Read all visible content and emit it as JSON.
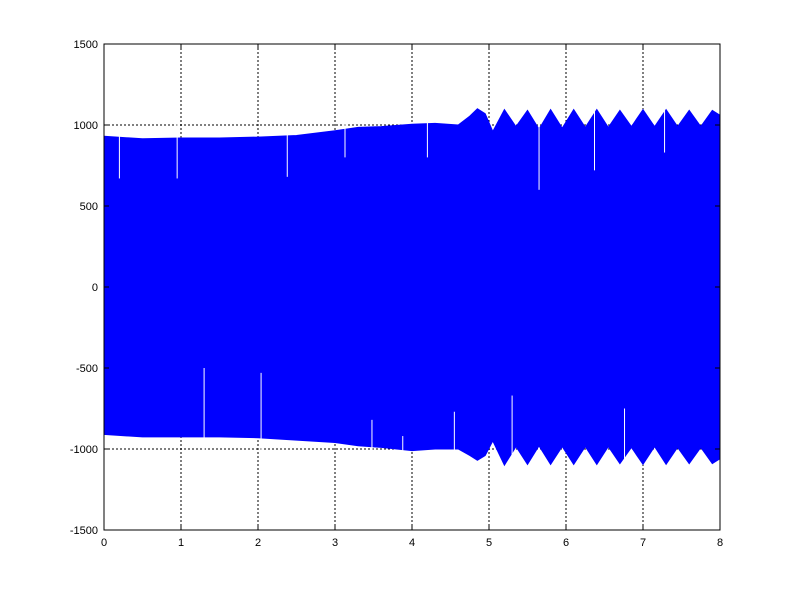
{
  "chart_data": {
    "type": "line",
    "title": "",
    "xlabel": "",
    "ylabel": "",
    "xlim": [
      0,
      8
    ],
    "ylim": [
      -1500,
      1500
    ],
    "x_ticks": [
      0,
      1,
      2,
      3,
      4,
      5,
      6,
      7,
      8
    ],
    "y_ticks": [
      -1500,
      -1000,
      -500,
      0,
      500,
      1000,
      1500
    ],
    "x_tick_labels": [
      "0",
      "1",
      "2",
      "3",
      "4",
      "5",
      "6",
      "7",
      "8"
    ],
    "y_tick_labels": [
      "-1500",
      "-1000",
      "-500",
      "0",
      "500",
      "1000",
      "1500"
    ],
    "grid": true,
    "grid_style": "dotted",
    "legend": "none",
    "series": [
      {
        "color": "#0000ff",
        "envelope": {
          "x": [
            0,
            0.5,
            1.0,
            1.5,
            2.0,
            2.5,
            3.0,
            3.3,
            3.6,
            4.0,
            4.3,
            4.6,
            4.75,
            4.85,
            4.95,
            5.05,
            5.2,
            5.35,
            5.5,
            5.65,
            5.8,
            5.95,
            6.1,
            6.25,
            6.4,
            6.55,
            6.7,
            6.85,
            7.0,
            7.15,
            7.3,
            7.45,
            7.6,
            7.75,
            7.9,
            8.0
          ],
          "upper": [
            930,
            915,
            920,
            920,
            925,
            935,
            965,
            985,
            990,
            1005,
            1010,
            1000,
            1055,
            1100,
            1070,
            960,
            1095,
            990,
            1090,
            975,
            1095,
            980,
            1095,
            985,
            1095,
            985,
            1090,
            990,
            1095,
            990,
            1095,
            990,
            1090,
            990,
            1090,
            1060
          ],
          "lower": [
            -910,
            -925,
            -925,
            -925,
            -930,
            -945,
            -960,
            -980,
            -990,
            -1010,
            -1000,
            -1000,
            -1040,
            -1070,
            -1040,
            -950,
            -1100,
            -985,
            -1095,
            -980,
            -1095,
            -985,
            -1095,
            -985,
            -1095,
            -985,
            -1090,
            -990,
            -1095,
            -985,
            -1095,
            -990,
            -1090,
            -990,
            -1090,
            -1060
          ]
        },
        "spikes_top": [
          {
            "x": 0.2,
            "y": 670
          },
          {
            "x": 0.95,
            "y": 670
          },
          {
            "x": 2.38,
            "y": 680
          },
          {
            "x": 3.13,
            "y": 800
          },
          {
            "x": 4.2,
            "y": 800
          },
          {
            "x": 5.65,
            "y": 600
          },
          {
            "x": 6.37,
            "y": 720
          },
          {
            "x": 7.28,
            "y": 830
          }
        ],
        "spikes_bottom": [
          {
            "x": 1.3,
            "y": -500
          },
          {
            "x": 2.04,
            "y": -530
          },
          {
            "x": 3.48,
            "y": -820
          },
          {
            "x": 3.88,
            "y": -920
          },
          {
            "x": 4.55,
            "y": -770
          },
          {
            "x": 5.3,
            "y": -670
          },
          {
            "x": 6.76,
            "y": -750
          }
        ]
      }
    ]
  }
}
